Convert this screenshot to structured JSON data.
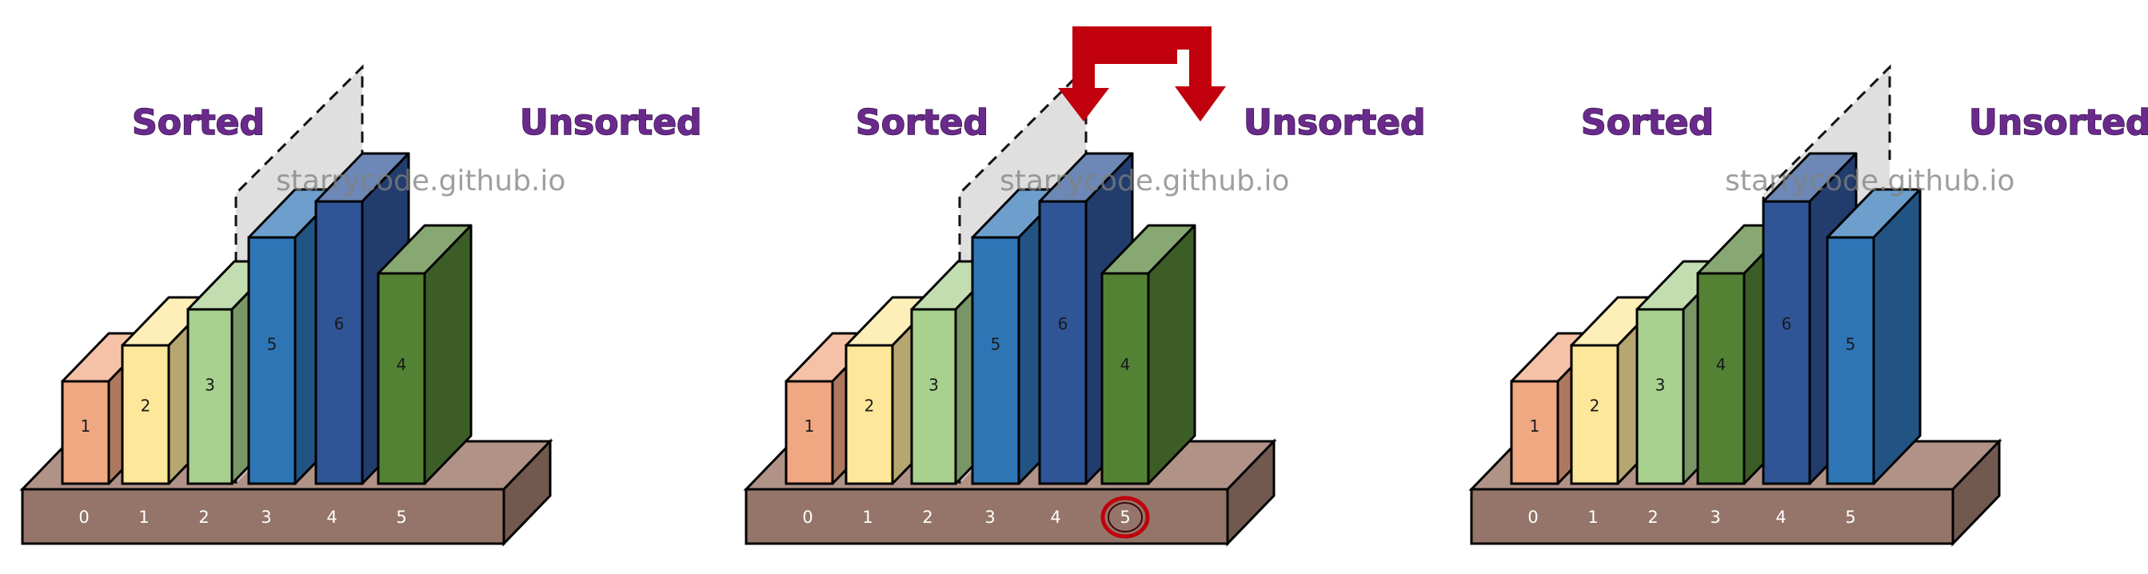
{
  "watermark": "starrycode.github.io",
  "colors": {
    "book1": "#f0a882",
    "book2": "#fde79a",
    "book3": "#a8d08f",
    "book4": "#548235",
    "book5": "#2e75b6",
    "book6": "#2f5597",
    "shelf": "#a27f72",
    "arrow": "#c0000c",
    "divider": "#d4d4d4",
    "title": "#6a2a8c"
  },
  "panels": [
    {
      "sorted_label": "Sorted",
      "unsorted_label": "Unsorted",
      "slots": [
        "0",
        "1",
        "2",
        "3",
        "4",
        "5"
      ],
      "books": [
        {
          "label": "1",
          "color": "book1"
        },
        {
          "label": "2",
          "color": "book2"
        },
        {
          "label": "3",
          "color": "book3"
        },
        {
          "label": "5",
          "color": "book5"
        },
        {
          "label": "6",
          "color": "book6"
        },
        {
          "label": "4",
          "color": "book4"
        }
      ]
    },
    {
      "sorted_label": "Sorted",
      "unsorted_label": "Unsorted",
      "slots": [
        "0",
        "1",
        "2",
        "3",
        "4",
        "5"
      ],
      "highlighted_slot": "5",
      "books": [
        {
          "label": "1",
          "color": "book1"
        },
        {
          "label": "2",
          "color": "book2"
        },
        {
          "label": "3",
          "color": "book3"
        },
        {
          "label": "5",
          "color": "book5"
        },
        {
          "label": "6",
          "color": "book6"
        },
        {
          "label": "4",
          "color": "book4"
        }
      ]
    },
    {
      "sorted_label": "Sorted",
      "unsorted_label": "Unsorted",
      "slots": [
        "0",
        "1",
        "2",
        "3",
        "4",
        "5"
      ],
      "books": [
        {
          "label": "1",
          "color": "book1"
        },
        {
          "label": "2",
          "color": "book2"
        },
        {
          "label": "3",
          "color": "book3"
        },
        {
          "label": "4",
          "color": "book4"
        },
        {
          "label": "6",
          "color": "book6"
        },
        {
          "label": "5",
          "color": "book5"
        }
      ]
    }
  ]
}
